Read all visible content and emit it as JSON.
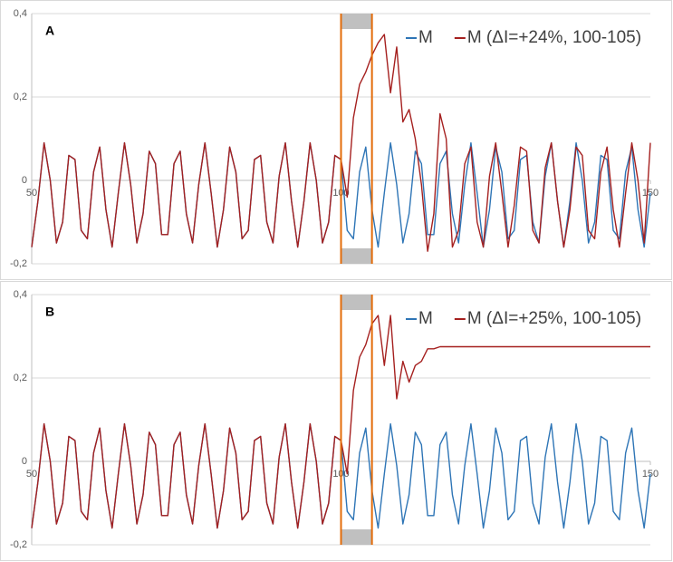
{
  "chart_data": [
    {
      "type": "line",
      "panel_label": "A",
      "legend": "top-right",
      "grid": true,
      "xlim": [
        50,
        150
      ],
      "xticks": [
        50,
        100,
        150
      ],
      "ylim": [
        -0.2,
        0.4
      ],
      "yticks": [
        {
          "value": -0.2,
          "label": "-0,2"
        },
        {
          "value": 0,
          "label": "0"
        },
        {
          "value": 0.2,
          "label": "0,2"
        },
        {
          "value": 0.4,
          "label": "0,4"
        }
      ],
      "highlight": [
        100,
        105
      ],
      "x": [
        50,
        51,
        52,
        53,
        54,
        55,
        56,
        57,
        58,
        59,
        60,
        61,
        62,
        63,
        64,
        65,
        66,
        67,
        68,
        69,
        70,
        71,
        72,
        73,
        74,
        75,
        76,
        77,
        78,
        79,
        80,
        81,
        82,
        83,
        84,
        85,
        86,
        87,
        88,
        89,
        90,
        91,
        92,
        93,
        94,
        95,
        96,
        97,
        98,
        99,
        100,
        101,
        102,
        103,
        104,
        105,
        106,
        107,
        108,
        109,
        110,
        111,
        112,
        113,
        114,
        115,
        116,
        117,
        118,
        119,
        120,
        121,
        122,
        123,
        124,
        125,
        126,
        127,
        128,
        129,
        130,
        131,
        132,
        133,
        134,
        135,
        136,
        137,
        138,
        139,
        140,
        141,
        142,
        143,
        144,
        145,
        146,
        147,
        148,
        149,
        150
      ],
      "series": [
        {
          "name": "M",
          "color": "#2e75b6",
          "values": [
            -0.16,
            -0.05,
            0.09,
            0,
            -0.15,
            -0.1,
            0.06,
            0.05,
            -0.12,
            -0.14,
            0.02,
            0.08,
            -0.07,
            -0.16,
            -0.03,
            0.09,
            -0.01,
            -0.15,
            -0.08,
            0.07,
            0.04,
            -0.13,
            -0.13,
            0.04,
            0.07,
            -0.08,
            -0.15,
            -0.01,
            0.09,
            -0.03,
            -0.16,
            -0.07,
            0.08,
            0.02,
            -0.14,
            -0.12,
            0.05,
            0.06,
            -0.1,
            -0.15,
            0.01,
            0.09,
            -0.05,
            -0.16,
            -0.05,
            0.09,
            0,
            -0.15,
            -0.1,
            0.06,
            0.05,
            -0.12,
            -0.14,
            0.02,
            0.08,
            -0.07,
            -0.16,
            -0.03,
            0.09,
            -0.01,
            -0.15,
            -0.08,
            0.07,
            0.04,
            -0.13,
            -0.13,
            0.04,
            0.07,
            -0.08,
            -0.15,
            -0.01,
            0.09,
            -0.03,
            -0.16,
            -0.07,
            0.08,
            0.02,
            -0.14,
            -0.12,
            0.05,
            0.06,
            -0.1,
            -0.15,
            0.01,
            0.09,
            -0.05,
            -0.16,
            -0.05,
            0.09,
            0,
            -0.15,
            -0.1,
            0.06,
            0.05,
            -0.12,
            -0.14,
            0.02,
            0.08,
            -0.07,
            -0.16,
            -0.03
          ]
        },
        {
          "name": "M (ΔI=+24%, 100-105)",
          "color": "#a5201f",
          "values": [
            -0.16,
            -0.05,
            0.09,
            0,
            -0.15,
            -0.1,
            0.06,
            0.05,
            -0.12,
            -0.14,
            0.02,
            0.08,
            -0.07,
            -0.16,
            -0.03,
            0.09,
            -0.01,
            -0.15,
            -0.08,
            0.07,
            0.04,
            -0.13,
            -0.13,
            0.04,
            0.07,
            -0.08,
            -0.15,
            -0.01,
            0.09,
            -0.03,
            -0.16,
            -0.07,
            0.08,
            0.02,
            -0.14,
            -0.12,
            0.05,
            0.06,
            -0.1,
            -0.15,
            0.01,
            0.09,
            -0.05,
            -0.16,
            -0.05,
            0.09,
            0,
            -0.15,
            -0.1,
            0.06,
            0.05,
            -0.04,
            0.15,
            0.23,
            0.26,
            0.3,
            0.33,
            0.35,
            0.21,
            0.32,
            0.14,
            0.17,
            0.1,
            -0.01,
            -0.17,
            -0.08,
            0.16,
            0.1,
            -0.16,
            -0.12,
            0.04,
            0.08,
            -0.1,
            -0.16,
            0.01,
            0.09,
            -0.03,
            -0.16,
            -0.06,
            0.08,
            0.07,
            -0.12,
            -0.15,
            0.03,
            0.09,
            -0.05,
            -0.16,
            -0.07,
            0.08,
            0.06,
            -0.12,
            -0.14,
            0.02,
            0.08,
            -0.07,
            -0.16,
            -0.03,
            0.09,
            0,
            -0.15,
            0.09
          ]
        }
      ]
    },
    {
      "type": "line",
      "panel_label": "B",
      "legend": "top-right",
      "grid": true,
      "xlim": [
        50,
        150
      ],
      "xticks": [
        50,
        100,
        150
      ],
      "ylim": [
        -0.2,
        0.4
      ],
      "yticks": [
        {
          "value": -0.2,
          "label": "-0,2"
        },
        {
          "value": 0,
          "label": "0"
        },
        {
          "value": 0.2,
          "label": "0,2"
        },
        {
          "value": 0.4,
          "label": "0,4"
        }
      ],
      "highlight": [
        100,
        105
      ],
      "x": [
        50,
        51,
        52,
        53,
        54,
        55,
        56,
        57,
        58,
        59,
        60,
        61,
        62,
        63,
        64,
        65,
        66,
        67,
        68,
        69,
        70,
        71,
        72,
        73,
        74,
        75,
        76,
        77,
        78,
        79,
        80,
        81,
        82,
        83,
        84,
        85,
        86,
        87,
        88,
        89,
        90,
        91,
        92,
        93,
        94,
        95,
        96,
        97,
        98,
        99,
        100,
        101,
        102,
        103,
        104,
        105,
        106,
        107,
        108,
        109,
        110,
        111,
        112,
        113,
        114,
        115,
        116,
        117,
        118,
        119,
        120,
        121,
        122,
        123,
        124,
        125,
        126,
        127,
        128,
        129,
        130,
        131,
        132,
        133,
        134,
        135,
        136,
        137,
        138,
        139,
        140,
        141,
        142,
        143,
        144,
        145,
        146,
        147,
        148,
        149,
        150
      ],
      "series": [
        {
          "name": "M",
          "color": "#2e75b6",
          "values": [
            -0.16,
            -0.05,
            0.09,
            0,
            -0.15,
            -0.1,
            0.06,
            0.05,
            -0.12,
            -0.14,
            0.02,
            0.08,
            -0.07,
            -0.16,
            -0.03,
            0.09,
            -0.01,
            -0.15,
            -0.08,
            0.07,
            0.04,
            -0.13,
            -0.13,
            0.04,
            0.07,
            -0.08,
            -0.15,
            -0.01,
            0.09,
            -0.03,
            -0.16,
            -0.07,
            0.08,
            0.02,
            -0.14,
            -0.12,
            0.05,
            0.06,
            -0.1,
            -0.15,
            0.01,
            0.09,
            -0.05,
            -0.16,
            -0.05,
            0.09,
            0,
            -0.15,
            -0.1,
            0.06,
            0.05,
            -0.12,
            -0.14,
            0.02,
            0.08,
            -0.07,
            -0.16,
            -0.03,
            0.09,
            -0.01,
            -0.15,
            -0.08,
            0.07,
            0.04,
            -0.13,
            -0.13,
            0.04,
            0.07,
            -0.08,
            -0.15,
            -0.01,
            0.09,
            -0.03,
            -0.16,
            -0.07,
            0.08,
            0.02,
            -0.14,
            -0.12,
            0.05,
            0.06,
            -0.1,
            -0.15,
            0.01,
            0.09,
            -0.05,
            -0.16,
            -0.05,
            0.09,
            0,
            -0.15,
            -0.1,
            0.06,
            0.05,
            -0.12,
            -0.14,
            0.02,
            0.08,
            -0.07,
            -0.16,
            -0.03
          ]
        },
        {
          "name": "M (ΔI=+25%, 100-105)",
          "color": "#a5201f",
          "values": [
            -0.16,
            -0.05,
            0.09,
            0,
            -0.15,
            -0.1,
            0.06,
            0.05,
            -0.12,
            -0.14,
            0.02,
            0.08,
            -0.07,
            -0.16,
            -0.03,
            0.09,
            -0.01,
            -0.15,
            -0.08,
            0.07,
            0.04,
            -0.13,
            -0.13,
            0.04,
            0.07,
            -0.08,
            -0.15,
            -0.01,
            0.09,
            -0.03,
            -0.16,
            -0.07,
            0.08,
            0.02,
            -0.14,
            -0.12,
            0.05,
            0.06,
            -0.1,
            -0.15,
            0.01,
            0.09,
            -0.05,
            -0.16,
            -0.05,
            0.09,
            0,
            -0.15,
            -0.1,
            0.06,
            0.05,
            -0.03,
            0.17,
            0.25,
            0.28,
            0.33,
            0.35,
            0.23,
            0.35,
            0.15,
            0.24,
            0.19,
            0.23,
            0.24,
            0.27,
            0.27,
            0.275,
            0.275,
            0.275,
            0.275,
            0.275,
            0.275,
            0.275,
            0.275,
            0.275,
            0.275,
            0.275,
            0.275,
            0.275,
            0.275,
            0.275,
            0.275,
            0.275,
            0.275,
            0.275,
            0.275,
            0.275,
            0.275,
            0.275,
            0.275,
            0.275,
            0.275,
            0.275,
            0.275,
            0.275,
            0.275,
            0.275,
            0.275,
            0.275,
            0.275,
            0.275
          ]
        }
      ]
    }
  ]
}
